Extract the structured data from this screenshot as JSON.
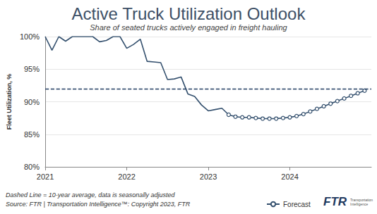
{
  "chart_data": {
    "type": "line",
    "title": "Active Truck Utilization Outlook",
    "subtitle": "Share of seated trucks actively engaged in freight hauling",
    "y_label": "Fleet Utilization, %",
    "xlim": [
      2021,
      2025
    ],
    "xticks": [
      2021,
      2022,
      2023,
      2024
    ],
    "ylim": [
      80,
      100
    ],
    "yticks": [
      {
        "value": 80,
        "label": "80%"
      },
      {
        "value": 85,
        "label": "85%"
      },
      {
        "value": 90,
        "label": "90%"
      },
      {
        "value": 95,
        "label": "95%"
      },
      {
        "value": 100,
        "label": "100%"
      }
    ],
    "grid": true,
    "legend": "bottom",
    "series": [
      {
        "color": "#34506e",
        "marker": "none",
        "line_style": "solid",
        "x": [
          2021.0,
          2021.083,
          2021.167,
          2021.25,
          2021.333,
          2021.417,
          2021.5,
          2021.583,
          2021.667,
          2021.75,
          2021.833,
          2021.917,
          2022.0,
          2022.083,
          2022.167,
          2022.25,
          2022.333,
          2022.417,
          2022.5,
          2022.583,
          2022.667,
          2022.75,
          2022.833,
          2022.917,
          2023.0,
          2023.083,
          2023.167,
          2023.25
        ],
        "values": [
          100,
          97.9,
          100,
          99.3,
          100,
          100,
          100,
          100,
          99.2,
          99.4,
          100,
          100,
          98.2,
          98.8,
          99.6,
          96.2,
          96.1,
          96.0,
          93.4,
          93.5,
          93.8,
          91.2,
          90.8,
          89.5,
          88.6,
          88.8,
          89.0,
          88.0
        ]
      },
      {
        "name": "Forecast",
        "color": "#34506e",
        "marker": "circle",
        "line_style": "solid",
        "x": [
          2023.25,
          2023.333,
          2023.417,
          2023.5,
          2023.583,
          2023.667,
          2023.75,
          2023.833,
          2023.917,
          2024.0,
          2024.083,
          2024.167,
          2024.25,
          2024.333,
          2024.417,
          2024.5,
          2024.583,
          2024.667,
          2024.75,
          2024.833,
          2024.917
        ],
        "values": [
          88.0,
          87.7,
          87.6,
          87.6,
          87.5,
          87.4,
          87.4,
          87.4,
          87.5,
          87.6,
          87.8,
          88.1,
          88.5,
          88.9,
          89.3,
          89.7,
          90.1,
          90.5,
          90.9,
          91.3,
          91.7
        ]
      }
    ],
    "average_line": {
      "value": 92,
      "color": "#1f3a5f",
      "line_style": "dashed"
    },
    "footnotes": [
      "Dashed Line = 10-year average, data is seasonally adjusted",
      "Source: FTR | Transportation Intelligence™: Copyright 2023, FTR"
    ],
    "logo": [
      "FTR",
      "Transportation Intelligence"
    ]
  }
}
